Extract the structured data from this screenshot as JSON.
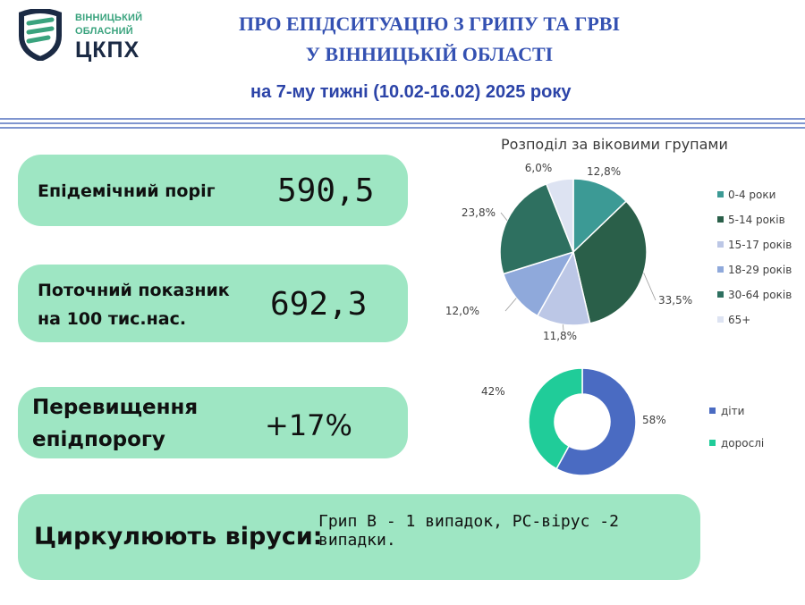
{
  "logo": {
    "line1": "ВІННИЦЬКИЙ",
    "line2": "ОБЛАСНИЙ",
    "line3": "ЦКПХ"
  },
  "title": {
    "line1": "ПРО ЕПІДСИТУАЦІЮ З ГРИПУ ТА ГРВІ",
    "line2": "У ВІННИЦЬКІЙ ОБЛАСТІ",
    "line3": "на 7-му тижні (10.02-16.02) 2025 року"
  },
  "cards": {
    "threshold": {
      "label": "Епідемічний поріг",
      "value": "590,5"
    },
    "current": {
      "label_line1": "Поточний показник",
      "label_line2": "на 100 тис.нас.",
      "value": "692,3"
    },
    "excess": {
      "label_line1": "Перевищення",
      "label_line2": "епідпорогу",
      "value": "+17%"
    },
    "viruses": {
      "label": "Циркулюють віруси:",
      "value": "Грип В - 1 випадок, РС-вірус -2 випадки."
    }
  },
  "colors": {
    "card_bg": "#9ee6c3",
    "title": "#3451b2",
    "logo_green": "#3aa37e",
    "logo_dark": "#1b2a44"
  },
  "chart_data": [
    {
      "type": "pie",
      "title": "Розподіл за віковими групами",
      "legend_position": "right",
      "categories": [
        "0-4 роки",
        "5-14 років",
        "15-17 років",
        "18-29 років",
        "30-64 років",
        "65+"
      ],
      "values": [
        12.8,
        33.5,
        11.8,
        12.0,
        23.8,
        6.0
      ],
      "labels": [
        "12,8%",
        "33,5%",
        "11,8%",
        "12,0%",
        "23,8%",
        "6,0%"
      ],
      "colors": [
        "#3c9a95",
        "#2a5f49",
        "#bcc7e6",
        "#8fa9db",
        "#2e7060",
        "#dde3f2"
      ]
    },
    {
      "type": "pie",
      "subtype": "donut",
      "legend_position": "right",
      "categories": [
        "діти",
        "дорослі"
      ],
      "values": [
        58,
        42
      ],
      "labels": [
        "58%",
        "42%"
      ],
      "colors": [
        "#4a6bc2",
        "#20cc99"
      ]
    }
  ]
}
